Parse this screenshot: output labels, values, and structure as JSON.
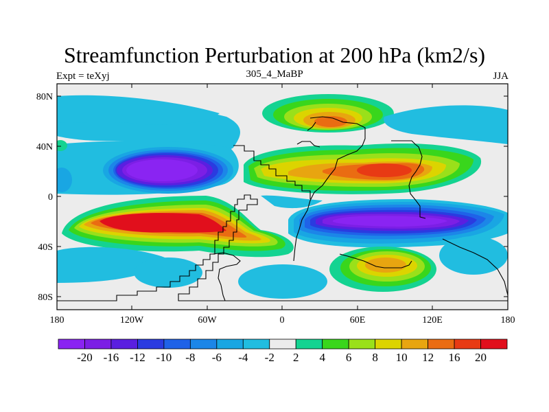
{
  "title": "Streamfunction Perturbation at 200 hPa (km2/s)",
  "left_subtitle": "Expt = teXyj",
  "center_subtitle": "305_4_MaBP",
  "right_subtitle": "JJA",
  "lat_labels": [
    "80N",
    "40N",
    "0",
    "40S",
    "80S"
  ],
  "lon_labels": [
    "180",
    "120W",
    "60W",
    "0",
    "60E",
    "120E",
    "180"
  ],
  "colorbar": {
    "labels": [
      "-20",
      "-16",
      "-12",
      "-10",
      "-8",
      "-6",
      "-4",
      "-2",
      "2",
      "4",
      "6",
      "8",
      "10",
      "12",
      "16",
      "20"
    ],
    "colors": [
      "#8a24f2",
      "#7c1fe5",
      "#5a1fe0",
      "#2a3be0",
      "#1f62e8",
      "#1c86e8",
      "#19a6e3",
      "#21bde0",
      "#ececec",
      "#14d391",
      "#39d61c",
      "#9ae01a",
      "#dcd400",
      "#e8a510",
      "#ea6c12",
      "#e83a14",
      "#e10f1c"
    ]
  }
}
